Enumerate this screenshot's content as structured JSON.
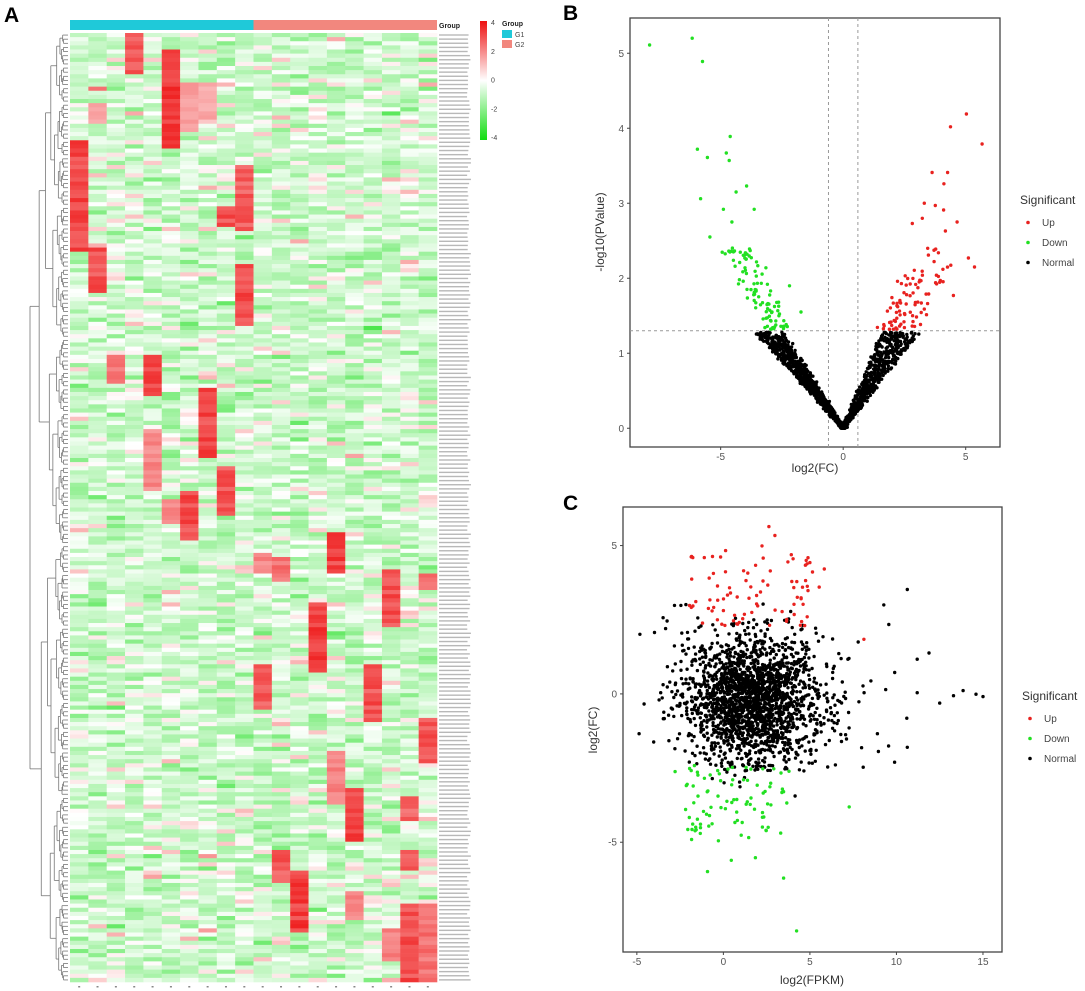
{
  "panels": {
    "a": "A",
    "b": "B",
    "c": "C"
  },
  "colors": {
    "up": "#e8221f",
    "down": "#22e022",
    "normal": "#000000",
    "g1": "#1fc9d9",
    "g2": "#f2877e",
    "heat_high": "#ee1111",
    "heat_low": "#11dd11",
    "heat_mid": "#ffffff"
  },
  "chart_data": [
    {
      "type": "heatmap",
      "group_header": "Group",
      "groups": [
        {
          "name": "G1",
          "columns": 10
        },
        {
          "name": "G2",
          "columns": 10
        }
      ],
      "legend": {
        "title": "Group",
        "items": [
          "G1",
          "G2"
        ]
      },
      "color_scale": {
        "ticks": [
          4,
          2,
          0,
          -2,
          -4
        ],
        "range": [
          -4,
          4
        ]
      },
      "rows": 230,
      "high_blocks": [
        {
          "col": 3,
          "rows": [
            0,
            9
          ],
          "v": 3.2
        },
        {
          "col": 5,
          "rows": [
            4,
            27
          ],
          "v": 3.6
        },
        {
          "col": 6,
          "rows": [
            12,
            23
          ],
          "v": 1.8
        },
        {
          "col": 7,
          "rows": [
            12,
            20
          ],
          "v": 1.6
        },
        {
          "col": 0,
          "rows": [
            26,
            52
          ],
          "v": 3.4
        },
        {
          "col": 1,
          "rows": [
            17,
            21
          ],
          "v": 1.6
        },
        {
          "col": 1,
          "rows": [
            52,
            62
          ],
          "v": 3.3
        },
        {
          "col": 9,
          "rows": [
            32,
            47
          ],
          "v": 3.0
        },
        {
          "col": 9,
          "rows": [
            56,
            70
          ],
          "v": 3.4
        },
        {
          "col": 8,
          "rows": [
            42,
            46
          ],
          "v": 3.2
        },
        {
          "col": 4,
          "rows": [
            78,
            87
          ],
          "v": 3.3
        },
        {
          "col": 2,
          "rows": [
            78,
            84
          ],
          "v": 2.4
        },
        {
          "col": 7,
          "rows": [
            86,
            102
          ],
          "v": 3.4
        },
        {
          "col": 4,
          "rows": [
            96,
            110
          ],
          "v": 2.2
        },
        {
          "col": 8,
          "rows": [
            105,
            116
          ],
          "v": 3.1
        },
        {
          "col": 6,
          "rows": [
            111,
            122
          ],
          "v": 3.4
        },
        {
          "col": 5,
          "rows": [
            113,
            118
          ],
          "v": 2.3
        },
        {
          "col": 10,
          "rows": [
            153,
            163
          ],
          "v": 3.0
        },
        {
          "col": 10,
          "rows": [
            126,
            130
          ],
          "v": 2.2
        },
        {
          "col": 11,
          "rows": [
            127,
            132
          ],
          "v": 2.6
        },
        {
          "col": 14,
          "rows": [
            121,
            130
          ],
          "v": 3.5
        },
        {
          "col": 13,
          "rows": [
            138,
            154
          ],
          "v": 3.6
        },
        {
          "col": 17,
          "rows": [
            130,
            143
          ],
          "v": 3.2
        },
        {
          "col": 16,
          "rows": [
            153,
            166
          ],
          "v": 3.2
        },
        {
          "col": 19,
          "rows": [
            131,
            134
          ],
          "v": 2.8
        },
        {
          "col": 19,
          "rows": [
            166,
            176
          ],
          "v": 3.2
        },
        {
          "col": 15,
          "rows": [
            183,
            195
          ],
          "v": 3.5
        },
        {
          "col": 14,
          "rows": [
            174,
            186
          ],
          "v": 2.4
        },
        {
          "col": 11,
          "rows": [
            198,
            205
          ],
          "v": 3.1
        },
        {
          "col": 12,
          "rows": [
            203,
            217
          ],
          "v": 3.6
        },
        {
          "col": 18,
          "rows": [
            185,
            190
          ],
          "v": 2.8
        },
        {
          "col": 18,
          "rows": [
            198,
            202
          ],
          "v": 3.0
        },
        {
          "col": 18,
          "rows": [
            211,
            229
          ],
          "v": 3.3
        },
        {
          "col": 19,
          "rows": [
            211,
            229
          ],
          "v": 2.6
        },
        {
          "col": 17,
          "rows": [
            217,
            224
          ],
          "v": 2.3
        },
        {
          "col": 15,
          "rows": [
            208,
            214
          ],
          "v": 2.2
        }
      ]
    },
    {
      "type": "scatter",
      "xlabel": "log2(FC)",
      "ylabel": "-log10(PValue)",
      "xlim": [
        -8.7,
        6.4
      ],
      "ylim": [
        -0.25,
        5.47
      ],
      "xticks": [
        -5,
        0,
        5
      ],
      "yticks": [
        0,
        1,
        2,
        3,
        4,
        5
      ],
      "thresholds": {
        "x": [
          -0.6,
          0.6
        ],
        "y": 1.3
      },
      "grid": false,
      "legend": {
        "title": "Significant",
        "items": [
          "Up",
          "Down",
          "Normal"
        ],
        "placement": "right"
      },
      "series": [
        {
          "name": "Down",
          "points": [
            [
              -7.9,
              5.11
            ],
            [
              -6.16,
              5.2
            ],
            [
              -5.74,
              4.89
            ],
            [
              -5.95,
              3.72
            ],
            [
              -5.54,
              3.61
            ],
            [
              -4.61,
              3.89
            ],
            [
              -4.77,
              3.67
            ],
            [
              -4.65,
              3.57
            ],
            [
              -5.82,
              3.06
            ],
            [
              -5.44,
              2.55
            ],
            [
              -4.48,
              2.24
            ],
            [
              -3.94,
              3.23
            ],
            [
              -4.37,
              3.15
            ],
            [
              -4.89,
              2.92
            ],
            [
              -4.54,
              2.75
            ],
            [
              -3.63,
              2.92
            ],
            [
              -1.72,
              1.55
            ],
            [
              -2.19,
              1.9
            ]
          ]
        },
        {
          "name": "Up",
          "points": [
            [
              5.03,
              4.19
            ],
            [
              4.38,
              4.02
            ],
            [
              5.67,
              3.79
            ],
            [
              3.63,
              3.41
            ],
            [
              4.26,
              3.41
            ],
            [
              4.11,
              3.26
            ],
            [
              3.31,
              3.0
            ],
            [
              3.76,
              2.97
            ],
            [
              4.1,
              2.91
            ],
            [
              2.82,
              2.73
            ],
            [
              3.23,
              2.8
            ],
            [
              4.65,
              2.75
            ],
            [
              4.17,
              2.63
            ],
            [
              5.11,
              2.27
            ],
            [
              5.36,
              2.15
            ],
            [
              4.5,
              1.77
            ],
            [
              3.45,
              2.4
            ]
          ]
        },
        {
          "name": "Normal",
          "points": []
        }
      ]
    },
    {
      "type": "scatter",
      "xlabel": "log2(FPKM)",
      "ylabel": "log2(FC)",
      "xlim": [
        -5.8,
        16.1
      ],
      "ylim": [
        -8.7,
        6.3
      ],
      "xticks": [
        -5,
        0,
        5,
        10,
        15
      ],
      "yticks": [
        -5,
        0,
        5
      ],
      "grid": false,
      "legend": {
        "title": "Significant",
        "items": [
          "Up",
          "Down",
          "Normal"
        ],
        "placement": "right"
      },
      "series": [
        {
          "name": "Up",
          "points": [
            [
              2.63,
              5.64
            ],
            [
              2.98,
              5.34
            ],
            [
              2.23,
              4.99
            ],
            [
              0.13,
              4.83
            ],
            [
              -0.63,
              4.63
            ],
            [
              5.83,
              4.21
            ],
            [
              5.15,
              4.11
            ],
            [
              8.12,
              1.84
            ],
            [
              4.75,
              3.82
            ],
            [
              5.54,
              3.6
            ]
          ]
        },
        {
          "name": "Down",
          "points": [
            [
              4.23,
              -7.99
            ],
            [
              -0.92,
              -5.99
            ],
            [
              3.48,
              -6.21
            ],
            [
              1.85,
              -5.52
            ],
            [
              0.46,
              -5.61
            ],
            [
              7.27,
              -3.81
            ],
            [
              -1.77,
              -4.39
            ],
            [
              -2.79,
              -2.62
            ]
          ]
        },
        {
          "name": "Normal",
          "points": [
            [
              -4.87,
              -1.34
            ],
            [
              10.63,
              3.52
            ],
            [
              9.27,
              3.0
            ],
            [
              9.56,
              2.34
            ],
            [
              11.88,
              1.38
            ],
            [
              15.0,
              -0.09
            ],
            [
              14.6,
              -0.01
            ],
            [
              13.85,
              0.11
            ],
            [
              13.3,
              -0.06
            ],
            [
              12.5,
              -0.31
            ],
            [
              11.2,
              0.04
            ],
            [
              10.63,
              -1.8
            ],
            [
              10.6,
              -0.82
            ],
            [
              8.96,
              -1.94
            ],
            [
              8.08,
              -2.47
            ],
            [
              11.2,
              1.17
            ],
            [
              9.9,
              0.72
            ],
            [
              -3.98,
              2.07
            ],
            [
              -3.48,
              2.57
            ]
          ]
        }
      ]
    }
  ]
}
